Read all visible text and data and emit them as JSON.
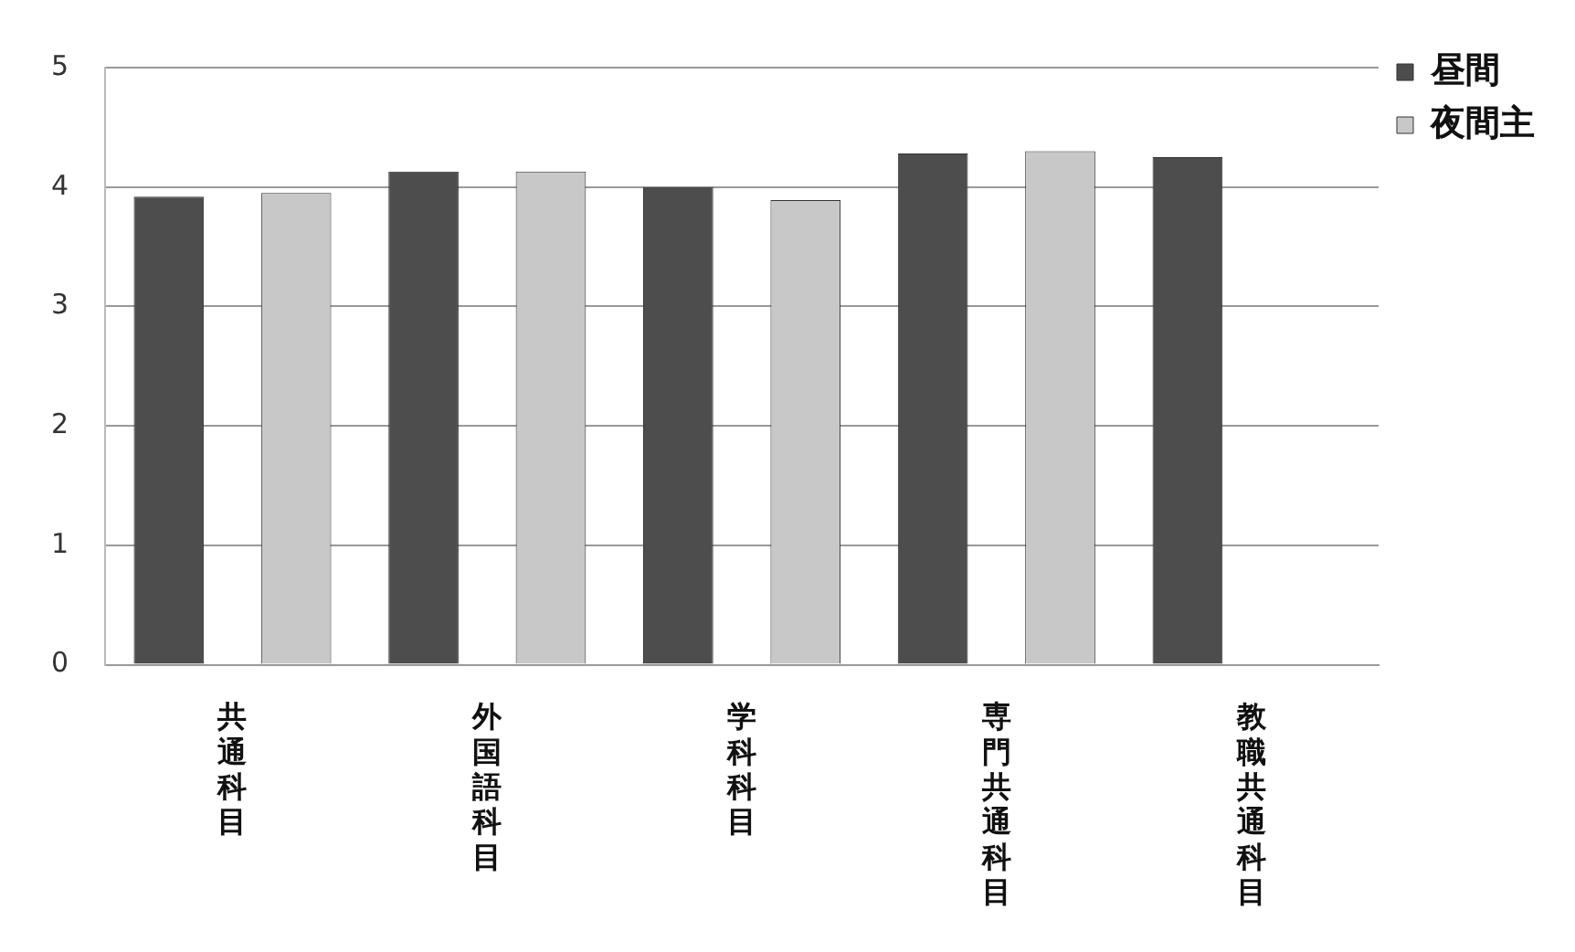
{
  "chart_data": {
    "type": "bar",
    "categories": [
      "共通科目",
      "外国語科目",
      "学科科目",
      "専門共通科目",
      "教職共通科目"
    ],
    "series": [
      {
        "name": "昼間",
        "color": "#4d4d4d",
        "values": [
          3.92,
          4.13,
          4.0,
          4.28,
          4.25
        ]
      },
      {
        "name": "夜間主",
        "color": "#c8c8c8",
        "values": [
          3.95,
          4.13,
          3.89,
          4.3,
          null
        ]
      }
    ],
    "ylim": [
      0,
      5
    ],
    "yticks": [
      0,
      1,
      2,
      3,
      4,
      5
    ],
    "grid": "y",
    "legend": "top right"
  }
}
